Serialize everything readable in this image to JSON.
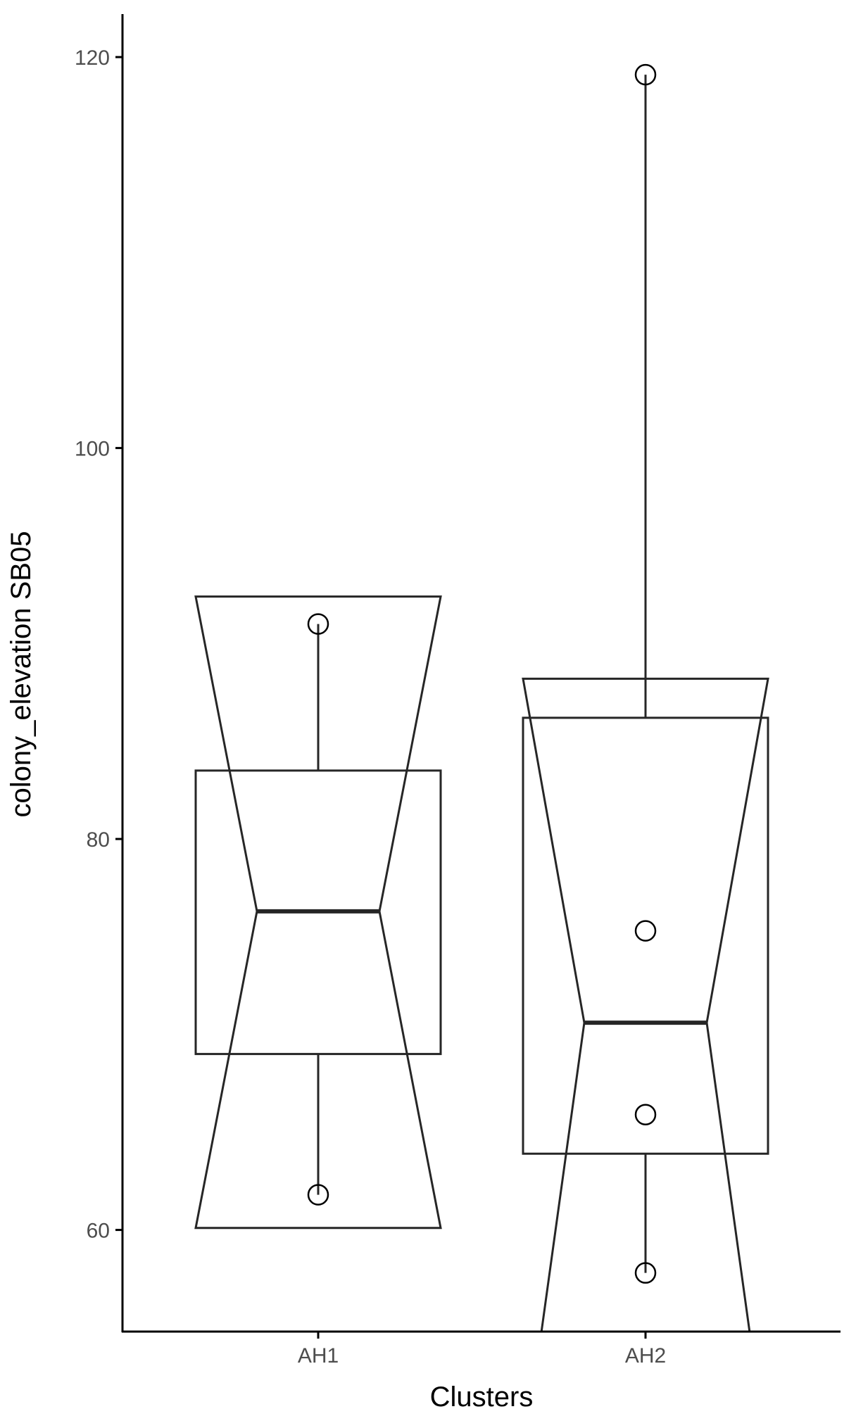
{
  "chart_data": {
    "type": "boxplot",
    "notched": true,
    "title": "",
    "xlabel": "Clusters",
    "ylabel": "colony_elevation SB05",
    "ylim": [
      54.8,
      122.2
    ],
    "yticks": [
      60,
      80,
      100,
      120
    ],
    "categories": [
      "AH1",
      "AH2"
    ],
    "boxes": [
      {
        "category": "AH1",
        "whisker_low": 61.8,
        "q1": 69.0,
        "median": 76.3,
        "q3": 83.5,
        "whisker_high": 91.0,
        "notch_low": 60.1,
        "notch_high": 92.4,
        "points": [
          91.0,
          61.8
        ]
      },
      {
        "category": "AH2",
        "whisker_low": 57.8,
        "q1": 63.9,
        "median": 70.6,
        "q3": 86.2,
        "whisker_high": 119.1,
        "notch_low": 48.0,
        "notch_high": 88.2,
        "points": [
          119.1,
          75.3,
          65.9,
          57.8
        ]
      }
    ],
    "grid": false,
    "legend": "none",
    "colors": {
      "line": "#262626",
      "axis": "#000000",
      "text": "#4d4d4d"
    }
  }
}
